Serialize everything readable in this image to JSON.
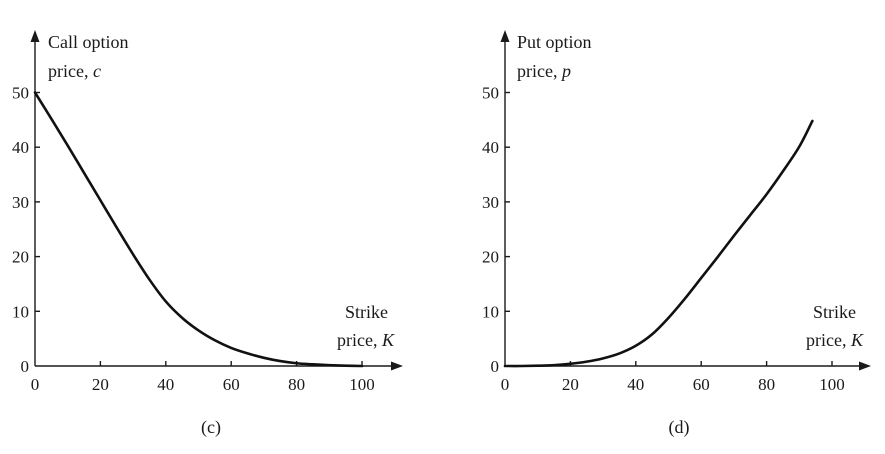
{
  "chart_data": [
    {
      "type": "line",
      "panel_label": "(c)",
      "ylabel_line1": "Call option",
      "ylabel_line2_prefix": "price, ",
      "ylabel_line2_var": "c",
      "xlabel_line1": "Strike",
      "xlabel_line2_prefix": "price, ",
      "xlabel_line2_var": "K",
      "xticks": [
        0,
        20,
        40,
        60,
        80,
        100
      ],
      "yticks": [
        0,
        10,
        20,
        30,
        40,
        50
      ],
      "xlim": [
        0,
        110
      ],
      "ylim": [
        0,
        55
      ],
      "grid": false,
      "series": [
        {
          "x": [
            0,
            5,
            10,
            15,
            20,
            25,
            30,
            35,
            40,
            45,
            50,
            55,
            60,
            65,
            70,
            75,
            80,
            85,
            90,
            95,
            100
          ],
          "values": [
            50,
            45.2,
            40.3,
            35.3,
            30.3,
            25.3,
            20.4,
            15.8,
            11.8,
            8.8,
            6.5,
            4.7,
            3.3,
            2.3,
            1.5,
            0.9,
            0.5,
            0.3,
            0.15,
            0.05,
            0
          ]
        }
      ]
    },
    {
      "type": "line",
      "panel_label": "(d)",
      "ylabel_line1": "Put option",
      "ylabel_line2_prefix": "price, ",
      "ylabel_line2_var": "p",
      "xlabel_line1": "Strike",
      "xlabel_line2_prefix": "price, ",
      "xlabel_line2_var": "K",
      "xticks": [
        0,
        20,
        40,
        60,
        80,
        100
      ],
      "yticks": [
        0,
        10,
        20,
        30,
        40,
        50
      ],
      "xlim": [
        0,
        110
      ],
      "ylim": [
        0,
        55
      ],
      "grid": false,
      "series": [
        {
          "x": [
            0,
            5,
            10,
            15,
            20,
            25,
            30,
            35,
            40,
            45,
            50,
            55,
            60,
            65,
            70,
            75,
            80,
            85,
            90,
            94
          ],
          "values": [
            0,
            0,
            0.05,
            0.15,
            0.4,
            0.8,
            1.4,
            2.3,
            3.7,
            5.8,
            8.8,
            12.3,
            16.1,
            19.9,
            23.8,
            27.6,
            31.4,
            35.6,
            40.1,
            44.8
          ]
        }
      ]
    }
  ]
}
